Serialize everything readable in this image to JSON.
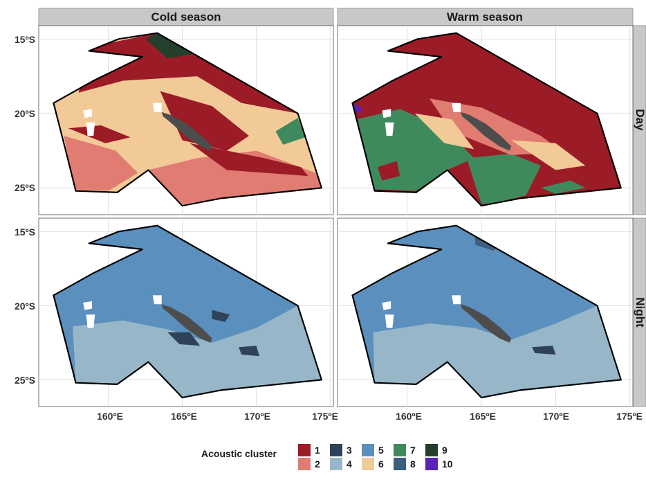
{
  "facets": {
    "columns": [
      "Cold season",
      "Warm season"
    ],
    "rows": [
      "Day",
      "Night"
    ]
  },
  "axes": {
    "x_ticks": [
      "160ºE",
      "165ºE",
      "170ºE",
      "175ºE"
    ],
    "x_values": [
      160,
      165,
      170,
      175
    ],
    "y_ticks": [
      "15ºS",
      "20ºS",
      "25ºS"
    ],
    "y_values": [
      -15,
      -20,
      -25
    ],
    "x_range": [
      155.3,
      175.2
    ],
    "y_range": [
      -26.8,
      -14.1
    ],
    "grid": true
  },
  "legend": {
    "title": "Acoustic cluster",
    "items": [
      {
        "label": "1",
        "color": "#9b1b27"
      },
      {
        "label": "2",
        "color": "#e07c72"
      },
      {
        "label": "3",
        "color": "#2f4258"
      },
      {
        "label": "4",
        "color": "#97b7c9"
      },
      {
        "label": "5",
        "color": "#5b8fbd"
      },
      {
        "label": "6",
        "color": "#f2ca97"
      },
      {
        "label": "7",
        "color": "#3f8a5c"
      },
      {
        "label": "8",
        "color": "#3e5f7f"
      },
      {
        "label": "9",
        "color": "#243f2c"
      },
      {
        "label": "10",
        "color": "#5b22b5"
      }
    ]
  },
  "colors": {
    "panel_bg": "#ffffff",
    "strip_bg": "#c8c8c8",
    "grid": "#d9d9d9",
    "land": "#ffffff",
    "new_caledonia": "#4d4d4d"
  },
  "regions": {
    "outline": [
      [
        156.3,
        -19.3
      ],
      [
        159.0,
        -17.8
      ],
      [
        162.3,
        -16.2
      ],
      [
        158.7,
        -15.8
      ],
      [
        160.7,
        -15.0
      ],
      [
        163.3,
        -14.6
      ],
      [
        172.8,
        -20.0
      ],
      [
        174.4,
        -25.0
      ],
      [
        167.6,
        -25.7
      ],
      [
        165.0,
        -26.2
      ],
      [
        162.7,
        -23.8
      ],
      [
        160.6,
        -25.3
      ],
      [
        157.8,
        -25.2
      ],
      [
        157.2,
        -22.8
      ],
      [
        156.3,
        -19.3
      ]
    ],
    "new_caledonia": [
      [
        163.6,
        -19.9
      ],
      [
        164.2,
        -20.1
      ],
      [
        165.3,
        -20.7
      ],
      [
        166.3,
        -21.5
      ],
      [
        167.0,
        -22.2
      ],
      [
        166.9,
        -22.5
      ],
      [
        166.2,
        -22.2
      ],
      [
        165.2,
        -21.5
      ],
      [
        164.2,
        -20.6
      ],
      [
        163.7,
        -20.2
      ],
      [
        163.6,
        -19.9
      ]
    ],
    "islands_white": [
      [
        [
          158.3,
          -19.8
        ],
        [
          158.9,
          -19.7
        ],
        [
          158.9,
          -20.2
        ],
        [
          158.4,
          -20.3
        ]
      ],
      [
        [
          158.5,
          -20.6
        ],
        [
          159.1,
          -20.6
        ],
        [
          159.0,
          -21.5
        ],
        [
          158.6,
          -21.5
        ]
      ],
      [
        [
          163.0,
          -19.3
        ],
        [
          163.6,
          -19.3
        ],
        [
          163.6,
          -19.9
        ],
        [
          163.1,
          -19.9
        ]
      ]
    ]
  },
  "panels": {
    "cold_day": {
      "base": 6,
      "blobs": [
        {
          "poly": [
            [
              158.5,
              -15.6
            ],
            [
              163.3,
              -14.6
            ],
            [
              172.8,
              -20.0
            ],
            [
              169.0,
              -19.3
            ],
            [
              166.0,
              -17.5
            ],
            [
              161.0,
              -17.8
            ],
            [
              158.0,
              -18.6
            ]
          ],
          "cls": 1
        },
        {
          "poly": [
            [
              162.5,
              -15.0
            ],
            [
              163.3,
              -14.6
            ],
            [
              165.8,
              -16.0
            ],
            [
              164.0,
              -16.3
            ]
          ],
          "cls": 9
        },
        {
          "poly": [
            [
              163.5,
              -18.5
            ],
            [
              167.0,
              -19.5
            ],
            [
              169.5,
              -21.5
            ],
            [
              168.0,
              -22.5
            ],
            [
              165.0,
              -21.8
            ]
          ],
          "cls": 1
        },
        {
          "poly": [
            [
              157.0,
              -21.5
            ],
            [
              160.5,
              -22.5
            ],
            [
              162.0,
              -24.0
            ],
            [
              160.0,
              -25.2
            ],
            [
              157.8,
              -25.1
            ],
            [
              157.3,
              -23.0
            ]
          ],
          "cls": 2
        },
        {
          "poly": [
            [
              162.7,
              -23.8
            ],
            [
              166.0,
              -23.0
            ],
            [
              170.0,
              -22.5
            ],
            [
              174.0,
              -24.0
            ],
            [
              174.4,
              -25.0
            ],
            [
              167.6,
              -25.7
            ],
            [
              165.0,
              -26.1
            ]
          ],
          "cls": 2
        },
        {
          "poly": [
            [
              165.5,
              -22.0
            ],
            [
              170.5,
              -23.0
            ],
            [
              173.0,
              -23.6
            ],
            [
              173.5,
              -24.2
            ],
            [
              168.0,
              -23.8
            ]
          ],
          "cls": 1
        },
        {
          "poly": [
            [
              171.3,
              -21.2
            ],
            [
              172.8,
              -20.3
            ],
            [
              173.3,
              -21.6
            ],
            [
              171.8,
              -22.1
            ]
          ],
          "cls": 7
        },
        {
          "poly": [
            [
              157.3,
              -21.0
            ],
            [
              159.5,
              -20.8
            ],
            [
              161.5,
              -21.6
            ],
            [
              159.8,
              -22.0
            ]
          ],
          "cls": 1
        }
      ]
    },
    "warm_day": {
      "base": 1,
      "blobs": [
        {
          "poly": [
            [
              156.6,
              -20.4
            ],
            [
              159.5,
              -19.7
            ],
            [
              162.5,
              -21.0
            ],
            [
              164.5,
              -23.0
            ],
            [
              162.7,
              -23.8
            ],
            [
              160.6,
              -25.2
            ],
            [
              157.8,
              -25.1
            ],
            [
              157.2,
              -22.8
            ]
          ],
          "cls": 7
        },
        {
          "poly": [
            [
              164.0,
              -23.0
            ],
            [
              167.0,
              -22.7
            ],
            [
              169.0,
              -23.5
            ],
            [
              168.0,
              -25.5
            ],
            [
              166.0,
              -26.0
            ],
            [
              165.0,
              -26.1
            ]
          ],
          "cls": 7
        },
        {
          "poly": [
            [
              158.0,
              -23.6
            ],
            [
              159.3,
              -23.2
            ],
            [
              159.5,
              -24.2
            ],
            [
              158.3,
              -24.5
            ]
          ],
          "cls": 1
        },
        {
          "poly": [
            [
              161.5,
              -19.0
            ],
            [
              165.0,
              -19.6
            ],
            [
              169.0,
              -21.5
            ],
            [
              170.5,
              -22.6
            ],
            [
              167.0,
              -22.8
            ],
            [
              163.0,
              -21.2
            ]
          ],
          "cls": 2
        },
        {
          "poly": [
            [
              160.5,
              -20.0
            ],
            [
              163.0,
              -20.4
            ],
            [
              164.5,
              -22.4
            ],
            [
              162.5,
              -22.0
            ]
          ],
          "cls": 6
        },
        {
          "poly": [
            [
              167.0,
              -21.8
            ],
            [
              170.0,
              -22.0
            ],
            [
              172.0,
              -23.5
            ],
            [
              170.0,
              -23.8
            ]
          ],
          "cls": 6
        },
        {
          "poly": [
            [
              169.0,
              -25.0
            ],
            [
              171.0,
              -24.5
            ],
            [
              172.0,
              -25.0
            ],
            [
              170.0,
              -25.4
            ]
          ],
          "cls": 7
        },
        {
          "poly": [
            [
              156.3,
              -19.3
            ],
            [
              156.9,
              -19.6
            ],
            [
              156.9,
              -20.0
            ],
            [
              156.4,
              -19.8
            ]
          ],
          "cls": 10
        }
      ]
    },
    "cold_night": {
      "base": 5,
      "blobs": [
        {
          "poly": [
            [
              157.6,
              -21.4
            ],
            [
              161.0,
              -21.0
            ],
            [
              164.0,
              -21.6
            ],
            [
              167.0,
              -22.5
            ],
            [
              170.0,
              -21.5
            ],
            [
              172.8,
              -20.0
            ],
            [
              174.4,
              -25.0
            ],
            [
              167.6,
              -25.7
            ],
            [
              165.0,
              -26.2
            ],
            [
              162.7,
              -23.8
            ],
            [
              160.6,
              -25.3
            ],
            [
              157.8,
              -25.2
            ]
          ],
          "cls": 4
        },
        {
          "poly": [
            [
              164.0,
              -21.8
            ],
            [
              165.5,
              -21.8
            ],
            [
              166.2,
              -22.7
            ],
            [
              164.8,
              -22.6
            ]
          ],
          "cls": 3
        },
        {
          "poly": [
            [
              168.8,
              -22.8
            ],
            [
              170.0,
              -22.7
            ],
            [
              170.2,
              -23.4
            ],
            [
              169.0,
              -23.3
            ]
          ],
          "cls": 3
        },
        {
          "poly": [
            [
              167.0,
              -20.3
            ],
            [
              168.2,
              -20.6
            ],
            [
              167.9,
              -21.1
            ],
            [
              167.0,
              -20.9
            ]
          ],
          "cls": 3
        }
      ]
    },
    "warm_night": {
      "base": 5,
      "blobs": [
        {
          "poly": [
            [
              157.7,
              -21.8
            ],
            [
              161.5,
              -21.2
            ],
            [
              164.5,
              -21.5
            ],
            [
              167.0,
              -22.3
            ],
            [
              170.0,
              -21.2
            ],
            [
              172.8,
              -20.0
            ],
            [
              174.4,
              -25.0
            ],
            [
              167.6,
              -25.7
            ],
            [
              165.0,
              -26.2
            ],
            [
              162.7,
              -23.8
            ],
            [
              160.6,
              -25.3
            ],
            [
              157.8,
              -25.2
            ]
          ],
          "cls": 4
        },
        {
          "poly": [
            [
              164.5,
              -14.9
            ],
            [
              166.2,
              -15.8
            ],
            [
              165.8,
              -16.3
            ],
            [
              164.6,
              -15.9
            ]
          ],
          "cls": 8
        },
        {
          "poly": [
            [
              168.4,
              -22.8
            ],
            [
              169.8,
              -22.7
            ],
            [
              170.0,
              -23.3
            ],
            [
              168.6,
              -23.2
            ]
          ],
          "cls": 3
        }
      ]
    }
  }
}
